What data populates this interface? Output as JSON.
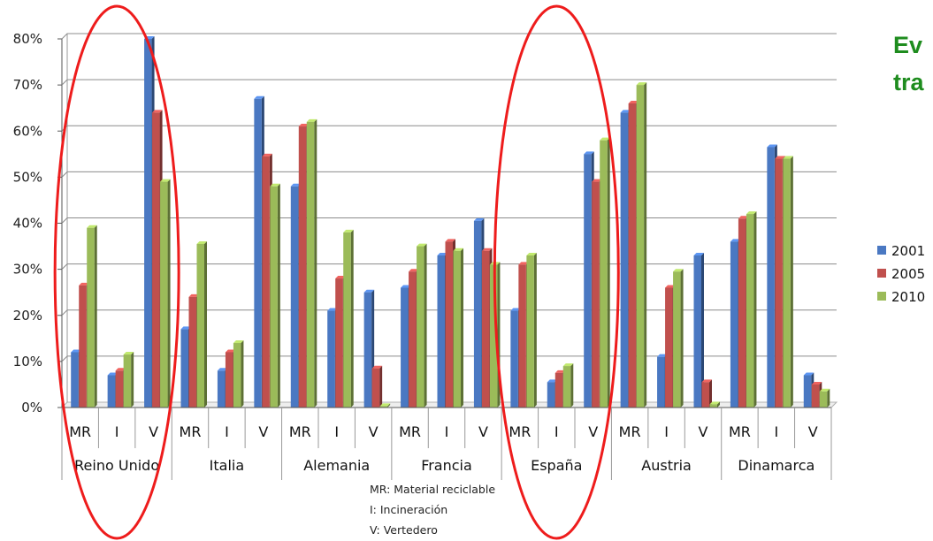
{
  "side_title": {
    "line1": "Ev",
    "line2": "tra"
  },
  "footnotes": [
    "MR: Material reciclable",
    "I: Incineración",
    "V: Vertedero"
  ],
  "chart_data": {
    "type": "bar",
    "yticks": [
      "0%",
      "10%",
      "20%",
      "30%",
      "40%",
      "50%",
      "60%",
      "70%",
      "80%"
    ],
    "ylim": [
      0,
      80
    ],
    "grid": true,
    "legend_position": "right",
    "groups": [
      "Reino Unido",
      "Italia",
      "Alemania",
      "Francia",
      "España",
      "Austria",
      "Dinamarca"
    ],
    "categories": [
      "MR",
      "I",
      "V",
      "MR",
      "I",
      "V",
      "MR",
      "I",
      "V",
      "MR",
      "I",
      "V",
      "MR",
      "I",
      "V",
      "MR",
      "I",
      "V",
      "MR",
      "I",
      "V"
    ],
    "series": [
      {
        "name": "2001",
        "color": "#4a78c2",
        "values": [
          12,
          7,
          80,
          17,
          8,
          67,
          48,
          21,
          25,
          26,
          33,
          40.5,
          21,
          5.5,
          55,
          64,
          11,
          33,
          36,
          56.5,
          7
        ]
      },
      {
        "name": "2005",
        "color": "#c0504d",
        "values": [
          26.5,
          8,
          64,
          24,
          12,
          54.5,
          61,
          28,
          8.5,
          29.5,
          36,
          34,
          31,
          7.5,
          49,
          66,
          26,
          5.5,
          41,
          54,
          5
        ]
      },
      {
        "name": "2010",
        "color": "#9bbb59",
        "values": [
          39,
          11.5,
          49,
          35.5,
          14,
          48,
          62,
          38,
          0.3,
          35,
          34,
          31,
          33,
          9,
          58,
          70,
          29.5,
          0.7,
          42,
          54,
          3.5
        ]
      }
    ],
    "highlight_ellipses": [
      "Reino Unido",
      "España"
    ]
  }
}
